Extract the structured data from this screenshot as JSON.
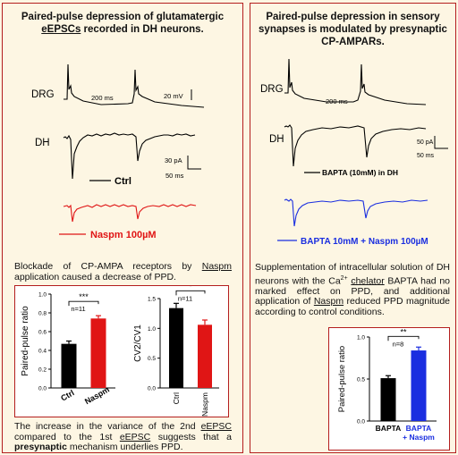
{
  "left": {
    "title_line1": "Paired-pulse  depression of glutamatergic",
    "title_line2_u": "eEPSCs",
    "title_line2_rest": " recorded in DH neurons.",
    "trace_labels": {
      "drg": "DRG",
      "dh": "DH"
    },
    "scale": {
      "time1": "200 ms",
      "volt": "20 mV",
      "current": "30 pA",
      "time2": "50 ms"
    },
    "legend": {
      "ctrl": "Ctrl",
      "naspm": "Naspm 100µM"
    },
    "para1": {
      "p1": "Blockade of CP-AMPA receptors by ",
      "p1u": "Naspm",
      "p2": " application caused a decrease of PPD."
    },
    "para2": {
      "p1": "The increase in the variance of the 2nd ",
      "p1u": "eEPSC",
      "p2": " compared to the 1st ",
      "p2u": "eEPSC",
      "p3": " suggests that a ",
      "p3b": "presynaptic",
      "p4": " mechanism underlies PPD."
    },
    "colors": {
      "ctrl": "#000000",
      "naspm": "#e01515",
      "border": "#b41e1e"
    }
  },
  "right": {
    "title_line1": "Paired-pulse depression in sensory",
    "title_line2": "synapses is modulated by presynaptic",
    "title_line3": "CP-AMPARs.",
    "trace_labels": {
      "drg": "DRG",
      "dh": "DH"
    },
    "scale": {
      "time1": "200 ms",
      "current": "50 pA",
      "time2": "50 ms"
    },
    "legend": {
      "bapta": "BAPTA (10mM) in DH",
      "bapta_naspm": "BAPTA 10mM + Naspm 100µM"
    },
    "para": {
      "p1": "Supplementation of intracellular solution of DH neurons with the Ca",
      "sup": "2+",
      "p1b": " ",
      "p1u": "chelator",
      "p2": " BAPTA had no marked effect on PPD, and additional application of ",
      "p2u": "Naspm",
      "p3": " reduced PPD magnitude according to control conditions."
    },
    "colors": {
      "bapta": "#000000",
      "bapta_naspm": "#1a2ee0"
    }
  },
  "chart_data": [
    {
      "type": "bar",
      "categories": [
        "Ctrl",
        "Naspm"
      ],
      "values": [
        0.47,
        0.74
      ],
      "errors": [
        0.03,
        0.03
      ],
      "ylabel": "Paired-pulse ratio",
      "ylim": [
        0.0,
        1.0
      ],
      "yticks": [
        "0.0",
        "0.2",
        "0.4",
        "0.6",
        "0.8",
        "1.0"
      ],
      "annotations": [
        "***",
        "n=11"
      ],
      "colors": [
        "#000000",
        "#e01515"
      ]
    },
    {
      "type": "bar",
      "categories": [
        "Ctrl",
        "Naspm"
      ],
      "values": [
        1.34,
        1.06
      ],
      "errors": [
        0.08,
        0.08
      ],
      "ylabel": "CV2/CV1",
      "ylim": [
        0.0,
        1.5
      ],
      "yticks": [
        "0.0",
        "0.5",
        "1.0",
        "1.5"
      ],
      "annotations": [
        "*",
        "n=11"
      ],
      "colors": [
        "#000000",
        "#e01515"
      ]
    },
    {
      "type": "bar",
      "categories": [
        "BAPTA",
        "BAPTA + Naspm"
      ],
      "values": [
        0.51,
        0.84
      ],
      "errors": [
        0.03,
        0.04
      ],
      "ylabel": "Paired-pulse ratio",
      "ylim": [
        0.0,
        1.0
      ],
      "yticks": [
        "0.0",
        "0.5",
        "1.0"
      ],
      "annotations": [
        "**",
        "n=8"
      ],
      "colors": [
        "#000000",
        "#1a2ee0"
      ]
    }
  ]
}
